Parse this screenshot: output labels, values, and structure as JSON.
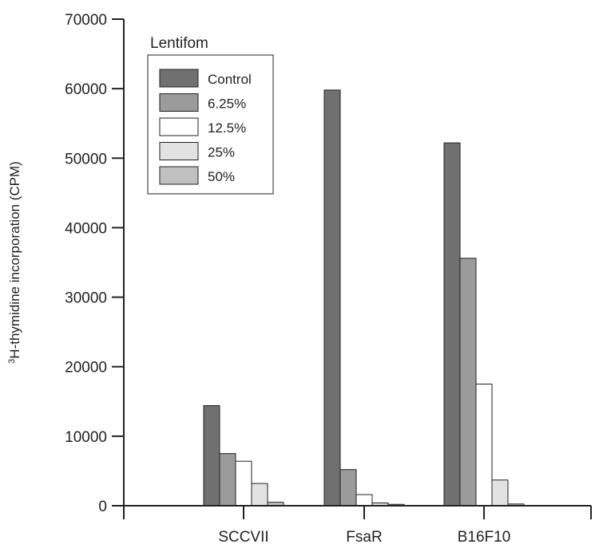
{
  "chart_data": {
    "type": "bar",
    "title": "",
    "xlabel": "",
    "ylabel_sup": "3",
    "ylabel": "H-thymidine incorporation (CPM)",
    "ylim": [
      0,
      70000
    ],
    "yticks": [
      0,
      10000,
      20000,
      30000,
      40000,
      50000,
      60000,
      70000
    ],
    "categories": [
      "SCCVII",
      "FsaR",
      "B16F10"
    ],
    "legend": {
      "title": "Lentifom",
      "position": "top-left"
    },
    "series": [
      {
        "name": "Control",
        "color": "#707070",
        "values": [
          14400,
          59800,
          52200
        ]
      },
      {
        "name": "6.25%",
        "color": "#9b9b9b",
        "values": [
          7500,
          5200,
          35600
        ]
      },
      {
        "name": "12.5%",
        "color": "#ffffff",
        "values": [
          6400,
          1600,
          17500
        ]
      },
      {
        "name": "25%",
        "color": "#e2e2e2",
        "values": [
          3200,
          400,
          3700
        ]
      },
      {
        "name": "50%",
        "color": "#c0c0c0",
        "values": [
          500,
          200,
          250
        ]
      }
    ]
  }
}
